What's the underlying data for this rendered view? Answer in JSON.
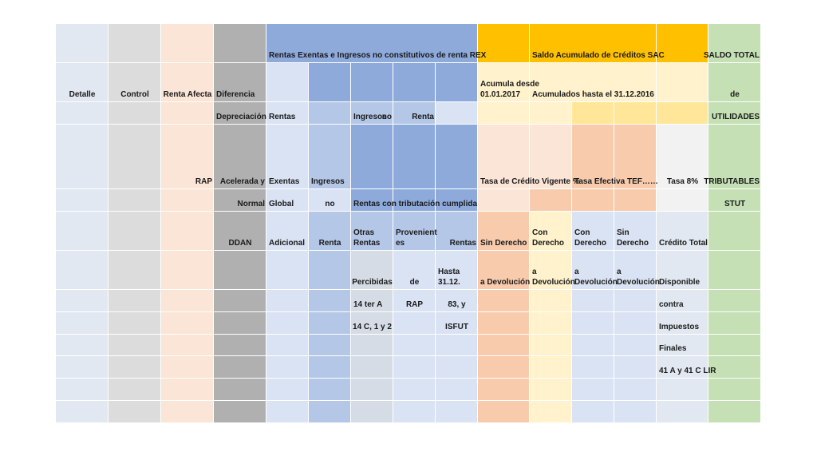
{
  "colors": {
    "detalle": "#e2e8f1",
    "control": "#dcdcdc",
    "renta_afecta": "#fbe5d6",
    "diferencia": "#b0b0b0",
    "rex_header": "#8eaadb",
    "rex_mid": "#b4c7e7",
    "rex_light": "#dae3f3",
    "rentas_percibidas": "#d6dce5",
    "sac_orange": "#ffc000",
    "sac_light": "#fff2cc",
    "sac_mid": "#ffe699",
    "tasa_vigente": "#fbe5d6",
    "tasa_efectiva": "#f8cbad",
    "tasa_8": "#f2f2f2",
    "credito_total": "#e2e8f1",
    "saldo_total": "#c5e0b4"
  },
  "labels": {
    "rex_title": "Rentas Exentas e Ingresos no constitutivos de renta REX",
    "sac_title": "Saldo Acumulado de Créditos   SAC",
    "saldo_total": "SALDO TOTAL",
    "detalle": "Detalle",
    "control": "Control",
    "renta_afecta": "Renta Afecta",
    "diferencia": "Diferencia",
    "acumula_desde": "Acumula desde\n01.01.2017",
    "acumulados_hasta": "Acumulados hasta el 31.12.2016",
    "de": "de",
    "depreciacion": "Depreciación",
    "rentas": "Rentas",
    "ingresos": "Ingresos",
    "no": "no",
    "renta": "Renta",
    "utilidades": "UTILIDADES",
    "rap": "RAP",
    "acelerada_y": "Acelerada y",
    "exentas": "Exentas",
    "ingresos2": "Ingresos",
    "tasa_vigente": "Tasa de Crédito Vigente %",
    "tasa_efectiva": "Tasa Efectiva TEF……",
    "tasa_8": "Tasa 8%",
    "tributables": "TRIBUTABLES",
    "normal": "Normal",
    "global": "Global",
    "no2": "no",
    "rentas_tributacion": "Rentas con tributación cumplida",
    "stut": "STUT",
    "ddan": "DDAN",
    "adicional": "Adicional",
    "renta2": "Renta",
    "otras_rentas": "Otras\nRentas",
    "provenientes": "Provenient\nes",
    "rentas2": "Rentas",
    "sin_derecho": "Sin Derecho",
    "con_derecho_1": "Con\nDerecho",
    "con_derecho_2": "Con\nDerecho",
    "sin_derecho_2": "Sin\nDerecho",
    "credito_total": "Crédito Total",
    "percibidas": "Percibidas",
    "de2": "de",
    "hasta": "Hasta\n31.12.",
    "a_devolucion_1": "a Devolución",
    "a_devolucion_2": "a\nDevolución",
    "a_devolucion_3": "a\nDevolución",
    "a_devolucion_4": "a\nDevolución",
    "disponible": "Disponible",
    "art_14ter": "14 ter A",
    "rap2": "RAP",
    "art_83": "83, y",
    "contra": "contra",
    "art_14c": "14 C, 1 y 2",
    "isfut": "ISFUT",
    "impuestos": "Impuestos",
    "finales": "Finales",
    "art_41": "41 A y 41 C LIR"
  }
}
